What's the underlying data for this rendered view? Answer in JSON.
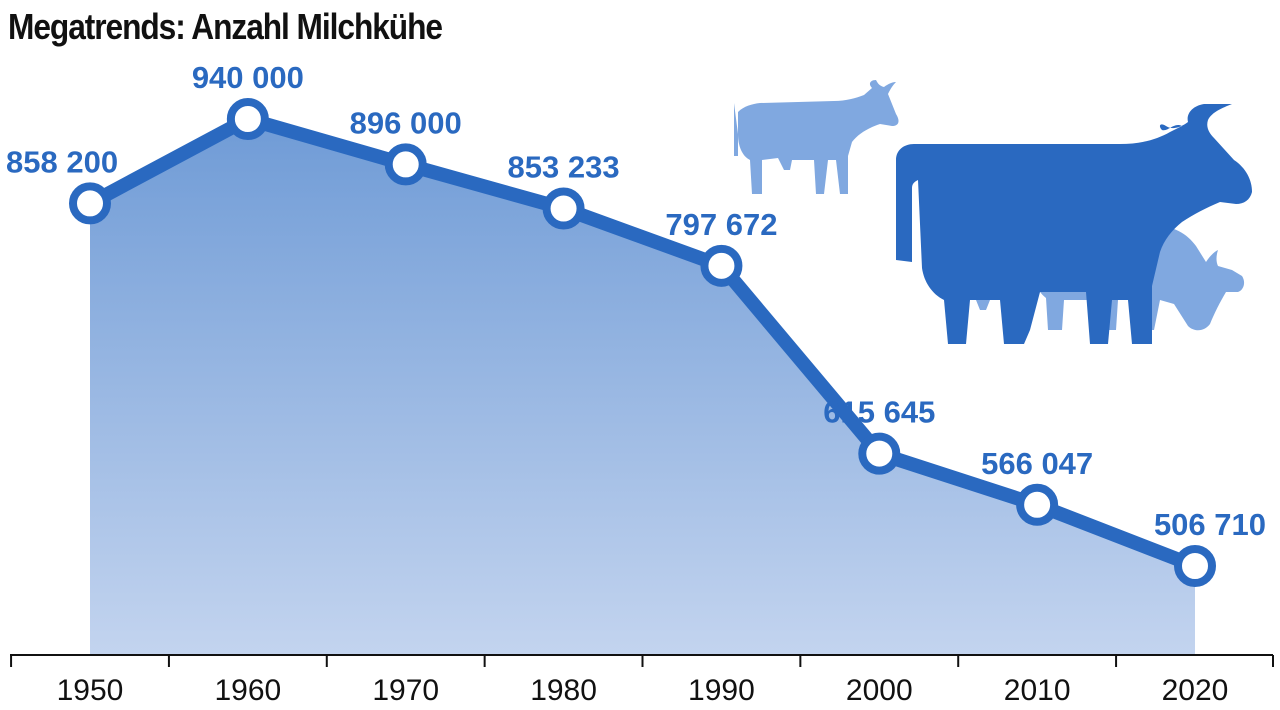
{
  "title": "Megatrends: Anzahl Milchkühe",
  "colors": {
    "line": "#2a69c0",
    "area_top": "#6f9bd6",
    "area_bottom": "#c3d4ef",
    "label": "#2a69c0",
    "cow_dark": "#2a69c0",
    "cow_light": "#80a8e0",
    "axis": "#111111"
  },
  "icons": [
    "cow-icon",
    "cow-icon",
    "cow-icon",
    "cow-icon"
  ],
  "chart_data": {
    "type": "area",
    "title": "Megatrends: Anzahl Milchkühe",
    "xlabel": "",
    "ylabel": "",
    "categories": [
      "1950",
      "1960",
      "1970",
      "1980",
      "1990",
      "2000",
      "2010",
      "2020"
    ],
    "values": [
      858200,
      940000,
      896000,
      853233,
      797672,
      615645,
      566047,
      506710
    ],
    "labels": [
      "858 200",
      "940 000",
      "896 000",
      "853 233",
      "797 672",
      "615 645",
      "566 047",
      "506 710"
    ],
    "grid": false,
    "legend": "none"
  }
}
